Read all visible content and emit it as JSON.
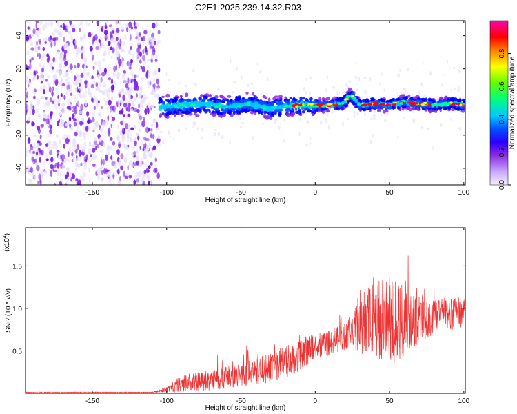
{
  "title": "C2E1.2025.239.14.32.R03",
  "chart_data": [
    {
      "type": "heatmap",
      "title": "C2E1.2025.239.14.32.R03",
      "xlabel": "Height of straight line (km)",
      "ylabel": "Frequency (Hz)",
      "xlim": [
        -195,
        101
      ],
      "ylim": [
        -50,
        49
      ],
      "x_ticks": [
        -150,
        -100,
        -50,
        0,
        50,
        100
      ],
      "x_tick_labels": [
        "-150",
        "-100",
        "-50",
        "0",
        "50",
        "100"
      ],
      "y_ticks": [
        -40,
        -20,
        0,
        20,
        40
      ],
      "y_tick_labels": [
        "-40",
        "-20",
        "0",
        "20",
        "40"
      ],
      "colorbar": {
        "label": "Normalized spectral amplitude",
        "range": [
          0,
          1
        ],
        "ticks": [
          0.0,
          0.2,
          0.4,
          0.6,
          0.8
        ],
        "tick_labels": [
          "0.0",
          "0.2",
          "0.4",
          "0.6",
          "0.8"
        ],
        "colormap": [
          "#e8e0ff",
          "#8a2be2",
          "#0000ff",
          "#00c8ff",
          "#00ff80",
          "#80ff00",
          "#ffff00",
          "#ff8000",
          "#ff0000",
          "#ff00c0"
        ]
      },
      "noise_region_x": [
        -195,
        -105
      ],
      "ridge": {
        "x": [
          -105,
          -90,
          -75,
          -60,
          -45,
          -30,
          -15,
          -5,
          0,
          10,
          18,
          24,
          30,
          40,
          50,
          60,
          70,
          80,
          90,
          101
        ],
        "frequency": [
          -3,
          -2,
          -1,
          -3,
          -1,
          -4,
          -2,
          -2,
          -2,
          -2,
          -1,
          4,
          -2,
          -1,
          -2,
          0,
          -1,
          -2,
          -1,
          -2
        ]
      },
      "grid": false
    },
    {
      "type": "line",
      "xlabel": "Height of straight line (km)",
      "ylabel": "SNR (10 * v/v)",
      "y_multiplier": "(x10",
      "y_multiplier_exp": "4",
      "xlim": [
        -195,
        101
      ],
      "ylim": [
        0,
        1.95
      ],
      "x_ticks": [
        -150,
        -100,
        -50,
        0,
        50,
        100
      ],
      "x_tick_labels": [
        "-150",
        "-100",
        "-50",
        "0",
        "50",
        "100"
      ],
      "y_ticks": [
        0.5,
        1.0,
        1.5
      ],
      "y_tick_labels": [
        "0.5",
        "1.0",
        "1.5"
      ],
      "color": "#ee3333",
      "envelope": {
        "x": [
          -195,
          -110,
          -100,
          -90,
          -70,
          -50,
          -30,
          -15,
          -5,
          10,
          25,
          30,
          40,
          50,
          60,
          70,
          80,
          90,
          95,
          101
        ],
        "mean": [
          0.01,
          0.01,
          0.04,
          0.12,
          0.15,
          0.22,
          0.3,
          0.4,
          0.5,
          0.6,
          0.72,
          0.82,
          0.88,
          0.85,
          0.83,
          0.87,
          0.9,
          0.93,
          0.95,
          0.95
        ],
        "amp": [
          0.005,
          0.005,
          0.03,
          0.1,
          0.12,
          0.14,
          0.18,
          0.2,
          0.18,
          0.15,
          0.2,
          0.4,
          0.5,
          0.5,
          0.45,
          0.3,
          0.2,
          0.18,
          0.25,
          0.15
        ]
      },
      "grid": false
    }
  ]
}
